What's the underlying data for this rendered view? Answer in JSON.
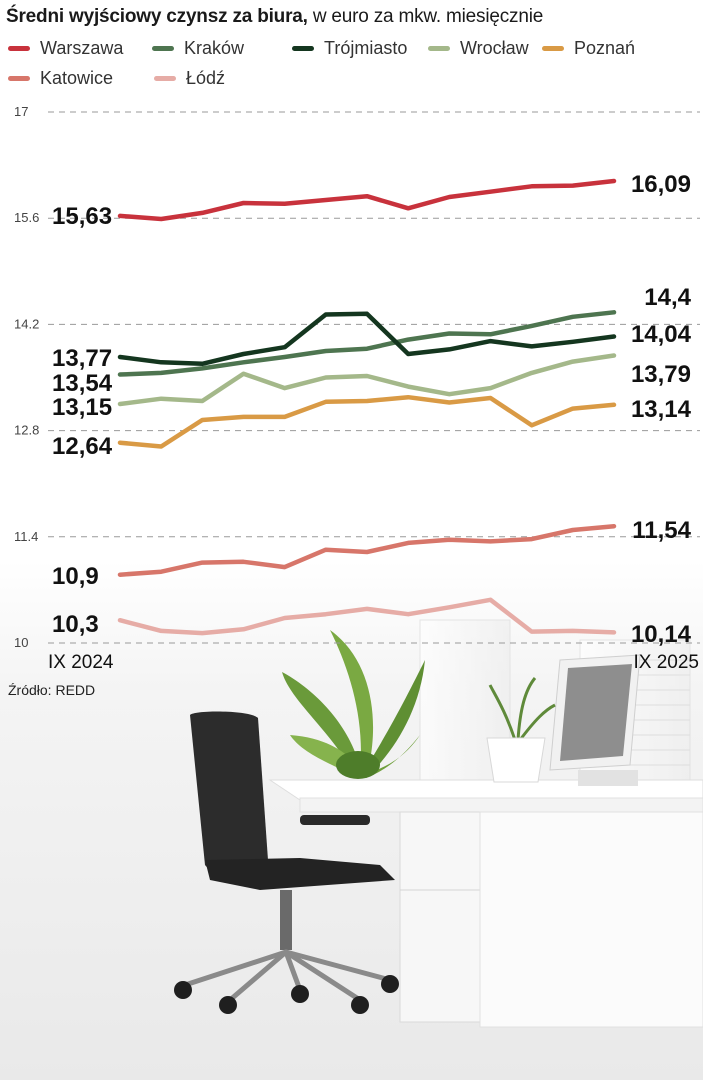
{
  "header": {
    "title_bold": "Średni wyjściowy czynsz za biura,",
    "title_rest": " w euro za mkw. miesięcznie"
  },
  "source": "Źródło: REDD",
  "chart_data": {
    "type": "line",
    "title": "Średni wyjściowy czynsz za biura, w euro za mkw. miesięcznie",
    "x_start_label": "IX 2024",
    "x_end_label": "IX 2025",
    "n_points": 13,
    "ylim": [
      10,
      17
    ],
    "y_ticks": [
      "17",
      "15.6",
      "14.2",
      "12.8",
      "11.4",
      "10"
    ],
    "y_tick_values": [
      17,
      15.6,
      14.2,
      12.8,
      11.4,
      10
    ],
    "grid": true,
    "legend_position": "top",
    "series": [
      {
        "name": "Warszawa",
        "color": "#c8323c",
        "values": [
          15.63,
          15.59,
          15.67,
          15.8,
          15.79,
          15.84,
          15.89,
          15.73,
          15.88,
          15.95,
          16.02,
          16.03,
          16.09
        ],
        "start_label": "15,63",
        "end_label": "16,09"
      },
      {
        "name": "Kraków",
        "color": "#4e7550",
        "values": [
          13.54,
          13.56,
          13.62,
          13.7,
          13.77,
          13.85,
          13.88,
          14.0,
          14.08,
          14.07,
          14.18,
          14.3,
          14.36
        ],
        "start_label": "13,54",
        "end_label": "14,4"
      },
      {
        "name": "Trójmiasto",
        "color": "#14361f",
        "values": [
          13.77,
          13.7,
          13.68,
          13.81,
          13.9,
          14.33,
          14.34,
          13.81,
          13.87,
          13.98,
          13.91,
          13.97,
          14.04
        ],
        "start_label": "13,77",
        "end_label": "14,04"
      },
      {
        "name": "Wrocław",
        "color": "#a4b88a",
        "values": [
          13.15,
          13.22,
          13.19,
          13.55,
          13.36,
          13.5,
          13.52,
          13.38,
          13.28,
          13.36,
          13.56,
          13.71,
          13.79
        ],
        "start_label": "13,15",
        "end_label": "13,79"
      },
      {
        "name": "Poznań",
        "color": "#d99a45",
        "values": [
          12.64,
          12.59,
          12.94,
          12.98,
          12.98,
          13.18,
          13.19,
          13.24,
          13.17,
          13.23,
          12.87,
          13.09,
          13.14
        ],
        "start_label": "12,64",
        "end_label": "13,14"
      },
      {
        "name": "Katowice",
        "color": "#d7766a",
        "values": [
          10.9,
          10.94,
          11.06,
          11.07,
          11.0,
          11.23,
          11.2,
          11.32,
          11.36,
          11.34,
          11.37,
          11.49,
          11.54
        ],
        "start_label": "10,9",
        "end_label": "11,54"
      },
      {
        "name": "Łódź",
        "color": "#e6aca6",
        "values": [
          10.3,
          10.16,
          10.13,
          10.18,
          10.33,
          10.38,
          10.45,
          10.38,
          10.47,
          10.57,
          10.15,
          10.16,
          10.14
        ],
        "start_label": "10,3",
        "end_label": "10,14"
      }
    ]
  }
}
